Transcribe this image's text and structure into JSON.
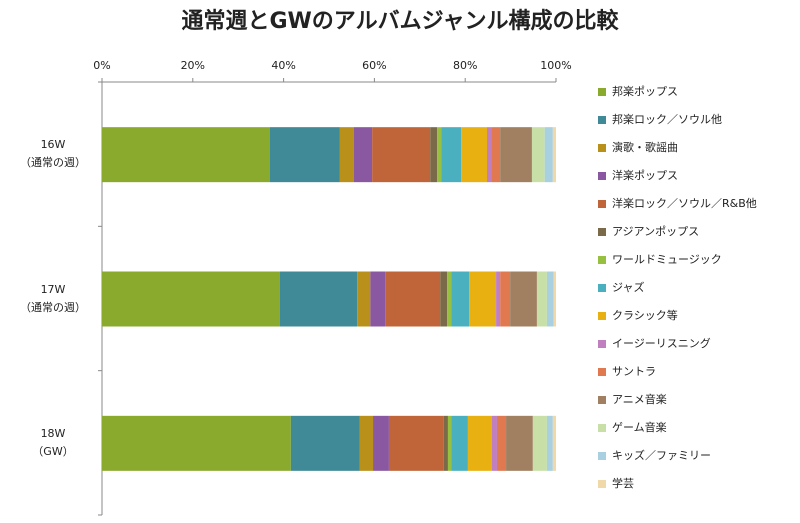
{
  "chart_data": {
    "type": "stacked-bar-horizontal",
    "title": "通常週とGWのアルバムジャンル構成の比較",
    "categories": [
      "16W\n（通常の週）",
      "17W\n（通常の週）",
      "18W\n（GW）"
    ],
    "xlim": [
      0,
      100
    ],
    "xticks": [
      {
        "value": 0,
        "label": "0%"
      },
      {
        "value": 20,
        "label": "20%"
      },
      {
        "value": 40,
        "label": "40%"
      },
      {
        "value": 60,
        "label": "60%"
      },
      {
        "value": 80,
        "label": "80%"
      },
      {
        "value": 100,
        "label": "100%"
      }
    ],
    "legend": "right",
    "series": [
      {
        "name": "邦楽ポップス",
        "color": "#8aaa2e",
        "values": [
          37.0,
          39.2,
          41.6
        ]
      },
      {
        "name": "邦楽ロック／ソウル他",
        "color": "#3f8a96",
        "values": [
          15.4,
          17.0,
          15.2
        ]
      },
      {
        "name": "演歌・歌謡曲",
        "color": "#b8901a",
        "values": [
          3.1,
          2.9,
          2.9
        ]
      },
      {
        "name": "洋楽ポップス",
        "color": "#8a58a0",
        "values": [
          4.0,
          3.3,
          3.5
        ]
      },
      {
        "name": "洋楽ロック／ソウル／R&B他",
        "color": "#c0643a",
        "values": [
          12.8,
          12.1,
          12.1
        ]
      },
      {
        "name": "アジアンポップス",
        "color": "#7a6a4a",
        "values": [
          1.5,
          1.5,
          0.9
        ]
      },
      {
        "name": "ワールドミュージック",
        "color": "#98c040",
        "values": [
          0.9,
          0.9,
          0.7
        ]
      },
      {
        "name": "ジャズ",
        "color": "#4ab0c0",
        "values": [
          4.4,
          4.0,
          3.7
        ]
      },
      {
        "name": "クラシック等",
        "color": "#e8b010",
        "values": [
          5.7,
          5.9,
          5.3
        ]
      },
      {
        "name": "イージーリスニング",
        "color": "#c080c0",
        "values": [
          0.9,
          0.9,
          1.1
        ]
      },
      {
        "name": "サントラ",
        "color": "#e07850",
        "values": [
          2.0,
          2.2,
          2.0
        ]
      },
      {
        "name": "アニメ音楽",
        "color": "#a08060",
        "values": [
          7.0,
          5.9,
          5.9
        ]
      },
      {
        "name": "ゲーム音楽",
        "color": "#c8e0a8",
        "values": [
          2.8,
          2.2,
          3.1
        ]
      },
      {
        "name": "キッズ／ファミリー",
        "color": "#a8d0e0",
        "values": [
          1.8,
          1.5,
          1.3
        ]
      },
      {
        "name": "学芸",
        "color": "#f0d8a8",
        "values": [
          0.7,
          0.5,
          0.7
        ]
      }
    ]
  }
}
